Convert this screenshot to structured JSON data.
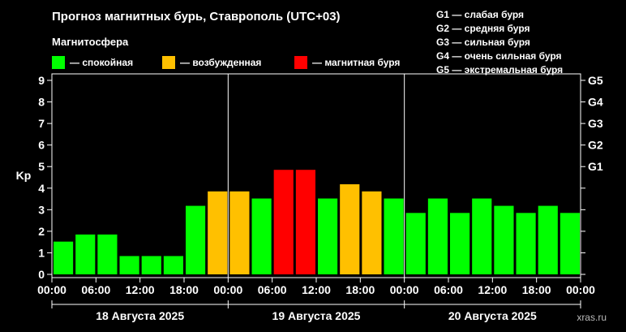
{
  "title": "Прогноз магнитных бурь, Ставрополь (UTC+03)",
  "subtitle": "Магнитосфера",
  "legend": [
    {
      "label": "— спокойная",
      "color": "#00ff00"
    },
    {
      "label": "— возбужденная",
      "color": "#ffc000"
    },
    {
      "label": "— магнитная буря",
      "color": "#ff0000"
    }
  ],
  "g_legend": [
    "G1 — слабая буря",
    "G2 — средняя буря",
    "G3 — сильная буря",
    "G4 — очень сильная буря",
    "G5 — экстремальная буря"
  ],
  "watermark": "xras.ru",
  "chart_data": {
    "type": "bar",
    "ylabel": "Kp",
    "ylim": [
      0,
      9
    ],
    "yticks": [
      0,
      1,
      2,
      3,
      4,
      5,
      6,
      7,
      8,
      9
    ],
    "g_levels": [
      {
        "label": "G1",
        "kp": 5
      },
      {
        "label": "G2",
        "kp": 6
      },
      {
        "label": "G3",
        "kp": 7
      },
      {
        "label": "G4",
        "kp": 8
      },
      {
        "label": "G5",
        "kp": 9
      }
    ],
    "xtick_labels": [
      "00:00",
      "06:00",
      "12:00",
      "18:00",
      "00:00",
      "06:00",
      "12:00",
      "18:00",
      "00:00",
      "06:00",
      "12:00",
      "18:00",
      "00:00"
    ],
    "days": [
      "18 Августа 2025",
      "19 Августа 2025",
      "20 Августа 2025"
    ],
    "values": [
      1.67,
      2,
      2,
      1,
      1,
      1,
      3.33,
      4,
      4,
      3.67,
      5,
      5,
      3.67,
      4.33,
      4,
      3.67,
      3,
      3.67,
      3,
      3.67,
      3.33,
      3,
      3.33,
      3
    ],
    "levels": [
      "quiet",
      "quiet",
      "quiet",
      "quiet",
      "quiet",
      "quiet",
      "quiet",
      "active",
      "active",
      "quiet",
      "storm",
      "storm",
      "quiet",
      "active",
      "active",
      "quiet",
      "quiet",
      "quiet",
      "quiet",
      "quiet",
      "quiet",
      "quiet",
      "quiet",
      "quiet"
    ],
    "colors": {
      "quiet": "#00ff00",
      "active": "#ffc000",
      "storm": "#ff0000"
    },
    "grid": false
  }
}
